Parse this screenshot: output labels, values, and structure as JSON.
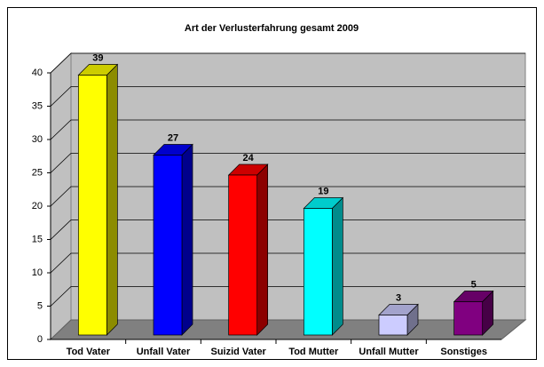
{
  "chart_data": {
    "type": "bar",
    "title": "Art der Verlusterfahrung gesamt 2009",
    "categories": [
      "Tod Vater",
      "Unfall Vater",
      "Suizid Vater",
      "Tod Mutter",
      "Unfall Mutter",
      "Sonstiges"
    ],
    "values": [
      39,
      27,
      24,
      19,
      3,
      5
    ],
    "colors": [
      "#ffff00",
      "#0000ff",
      "#ff0000",
      "#00ffff",
      "#ccccff",
      "#800080"
    ],
    "ylim": [
      0,
      40
    ],
    "yticks": [
      0,
      5,
      10,
      15,
      20,
      25,
      30,
      35,
      40
    ],
    "grid": true
  }
}
